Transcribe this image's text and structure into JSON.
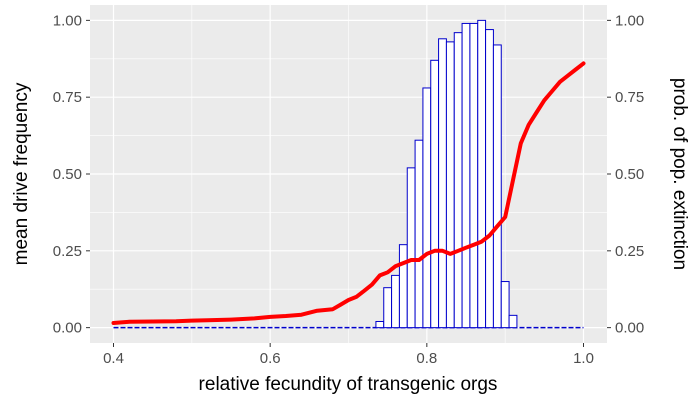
{
  "chart_data": {
    "type": "bar",
    "xlabel": "relative fecundity of transgenic orgs",
    "ylabel_left": "mean drive frequency",
    "ylabel_right": "prob. of pop. extinction",
    "xlim": [
      0.37,
      1.03
    ],
    "ylim": [
      -0.05,
      1.05
    ],
    "x_ticks": [
      0.4,
      0.6,
      0.8,
      1.0
    ],
    "x_tick_labels": [
      "0.4",
      "0.6",
      "0.8",
      "1.0"
    ],
    "y_ticks": [
      0,
      0.25,
      0.5,
      0.75,
      1.0
    ],
    "y_tick_labels": [
      "0.00",
      "0.25",
      "0.50",
      "0.75",
      "1.00"
    ],
    "grid": true,
    "bar_series": {
      "color": "#0000cc",
      "x": [
        0.74,
        0.75,
        0.76,
        0.77,
        0.78,
        0.79,
        0.8,
        0.81,
        0.82,
        0.83,
        0.84,
        0.85,
        0.86,
        0.87,
        0.88,
        0.89,
        0.9,
        0.91
      ],
      "values": [
        0.02,
        0.13,
        0.17,
        0.27,
        0.52,
        0.61,
        0.78,
        0.87,
        0.94,
        0.93,
        0.96,
        0.99,
        0.99,
        1.0,
        0.97,
        0.92,
        0.15,
        0.04
      ]
    },
    "line_series": {
      "color": "#ff0000",
      "x": [
        0.4,
        0.41,
        0.42,
        0.45,
        0.48,
        0.5,
        0.52,
        0.55,
        0.58,
        0.6,
        0.62,
        0.64,
        0.66,
        0.68,
        0.69,
        0.7,
        0.71,
        0.72,
        0.73,
        0.74,
        0.75,
        0.76,
        0.77,
        0.78,
        0.79,
        0.8,
        0.81,
        0.82,
        0.83,
        0.84,
        0.85,
        0.86,
        0.87,
        0.88,
        0.89,
        0.9,
        0.91,
        0.92,
        0.93,
        0.94,
        0.95,
        0.96,
        0.97,
        0.98,
        0.99,
        1.0
      ],
      "values": [
        0.015,
        0.017,
        0.019,
        0.02,
        0.021,
        0.023,
        0.024,
        0.026,
        0.03,
        0.035,
        0.038,
        0.042,
        0.055,
        0.06,
        0.075,
        0.09,
        0.1,
        0.12,
        0.14,
        0.17,
        0.18,
        0.2,
        0.21,
        0.22,
        0.22,
        0.24,
        0.25,
        0.25,
        0.24,
        0.25,
        0.26,
        0.27,
        0.28,
        0.3,
        0.33,
        0.36,
        0.48,
        0.6,
        0.66,
        0.7,
        0.74,
        0.77,
        0.8,
        0.82,
        0.84,
        0.86
      ]
    }
  }
}
